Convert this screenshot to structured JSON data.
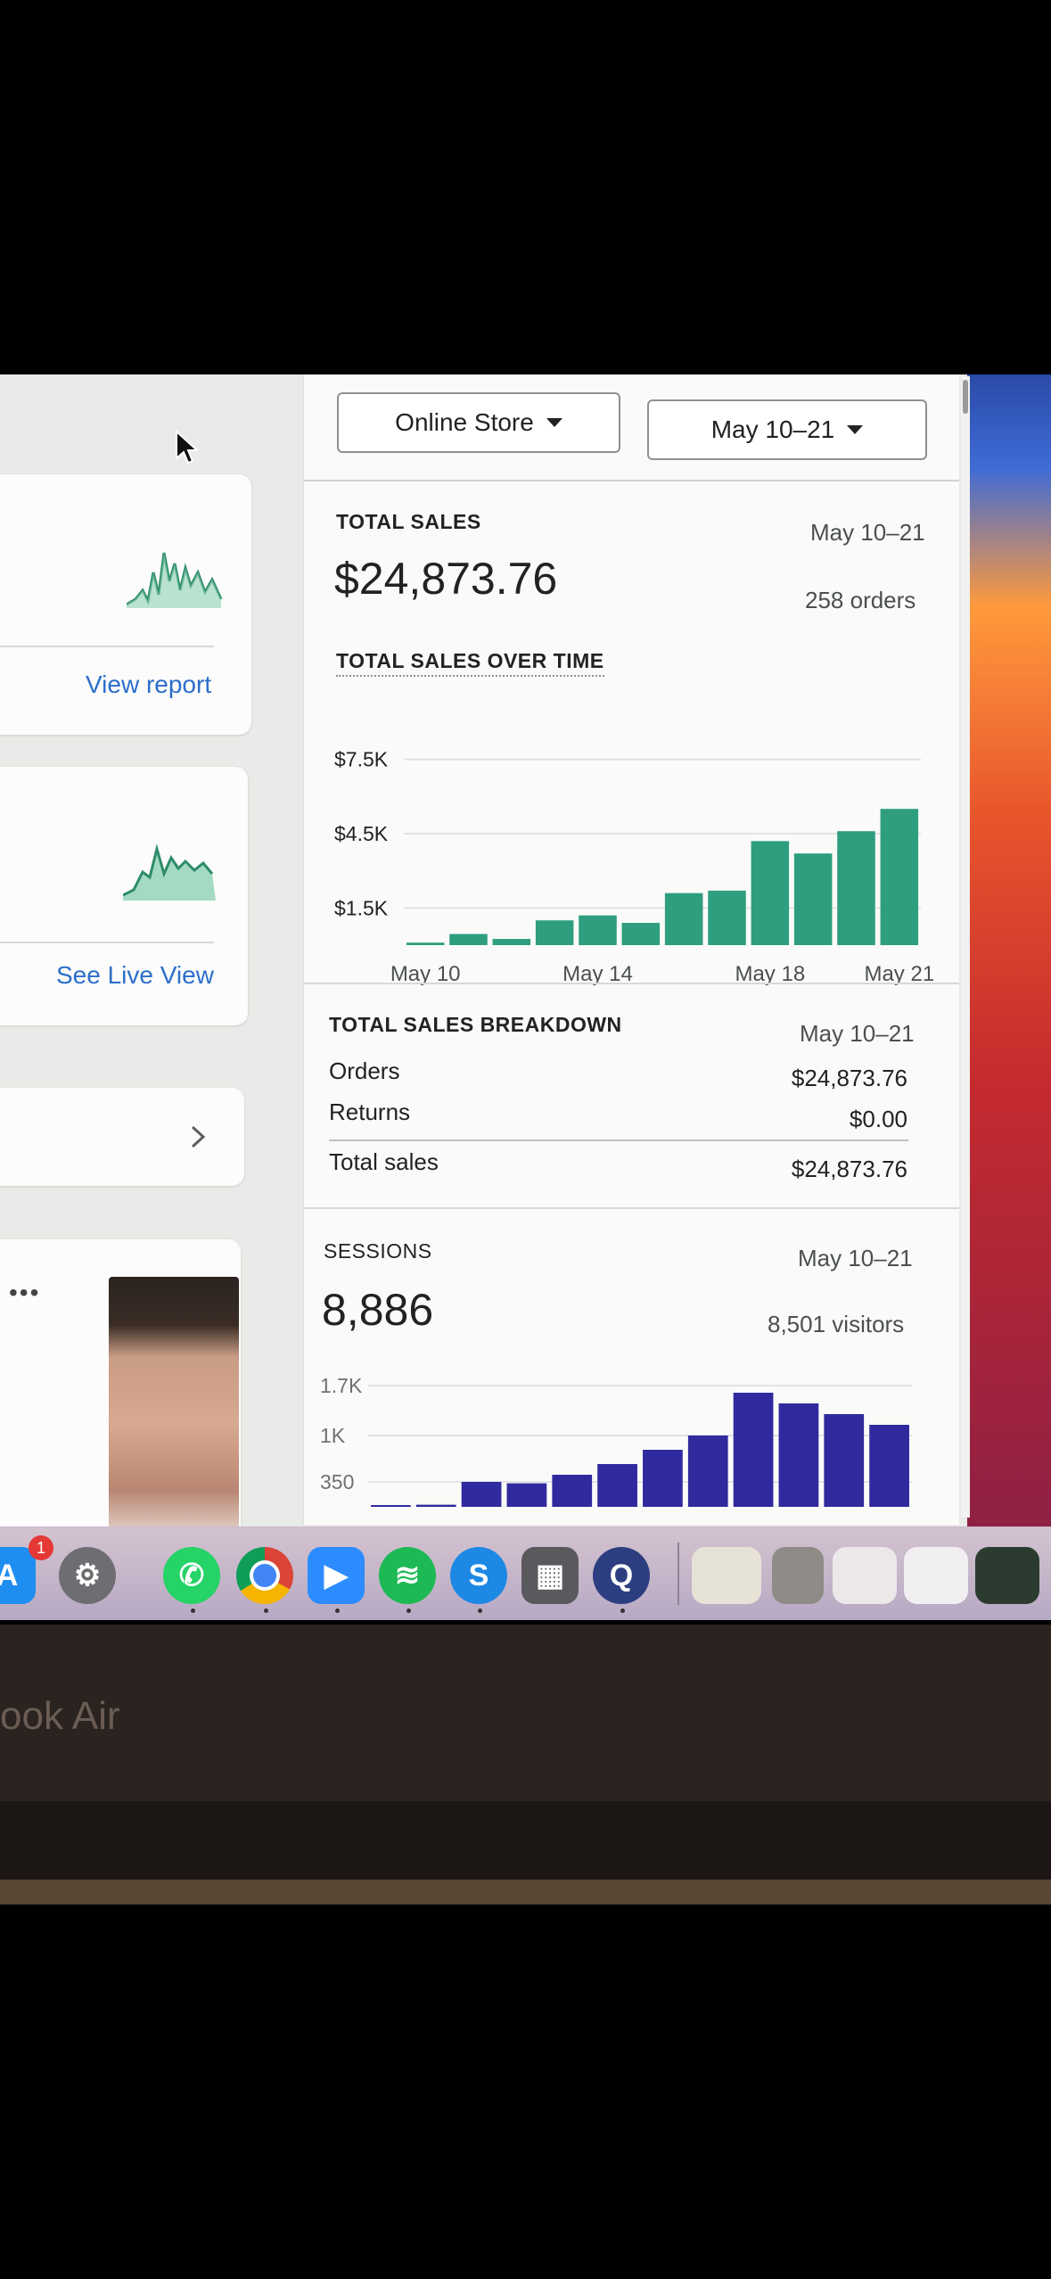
{
  "header": {
    "store_selector": "Online Store",
    "date_selector": "May 10–21"
  },
  "sidebar": {
    "view_report": "View report",
    "see_live_view": "See Live View",
    "more_label": "•••"
  },
  "total_sales": {
    "label": "TOTAL SALES",
    "range": "May 10–21",
    "amount": "$24,873.76",
    "orders": "258 orders"
  },
  "sales_over_time": {
    "label": "TOTAL SALES OVER TIME"
  },
  "breakdown": {
    "label": "TOTAL SALES BREAKDOWN",
    "range": "May 10–21",
    "rows": [
      {
        "name": "Orders",
        "value": "$24,873.76"
      },
      {
        "name": "Returns",
        "value": "$0.00"
      },
      {
        "name": "Total sales",
        "value": "$24,873.76"
      }
    ]
  },
  "sessions": {
    "label": "SESSIONS",
    "range": "May 10–21",
    "count": "8,886",
    "visitors": "8,501 visitors"
  },
  "colors": {
    "sales_bar": "#2e9e7e",
    "sessions_bar": "#2f2a9e",
    "link": "#2c6ecb"
  },
  "desktop": {
    "bezel_text": "ook Air",
    "app_store_badge": "1"
  },
  "chart_data": [
    {
      "type": "bar",
      "name": "total-sales-over-time",
      "categories": [
        "May 10",
        "May 11",
        "May 12",
        "May 13",
        "May 14",
        "May 15",
        "May 16",
        "May 17",
        "May 18",
        "May 19",
        "May 20",
        "May 21"
      ],
      "values": [
        100,
        450,
        250,
        1000,
        1200,
        900,
        2100,
        2200,
        4200,
        3700,
        4600,
        5500
      ],
      "y_tick_labels": [
        "$7.5K",
        "$4.5K",
        "$1.5K"
      ],
      "y_ticks": [
        7500,
        4500,
        1500
      ],
      "x_tick_labels": [
        "May 10",
        "May 14",
        "May 18",
        "May 21"
      ],
      "ylim": [
        0,
        9000
      ]
    },
    {
      "type": "bar",
      "name": "sessions",
      "categories": [
        "May 10",
        "May 11",
        "May 12",
        "May 13",
        "May 14",
        "May 15",
        "May 16",
        "May 17",
        "May 18",
        "May 19",
        "May 20",
        "May 21"
      ],
      "values": [
        0,
        30,
        350,
        330,
        450,
        600,
        800,
        1000,
        1600,
        1450,
        1300,
        1150
      ],
      "y_tick_labels": [
        "1.7K",
        "1K",
        "350"
      ],
      "y_ticks": [
        1700,
        1000,
        350
      ],
      "ylim": [
        0,
        2000
      ]
    }
  ]
}
